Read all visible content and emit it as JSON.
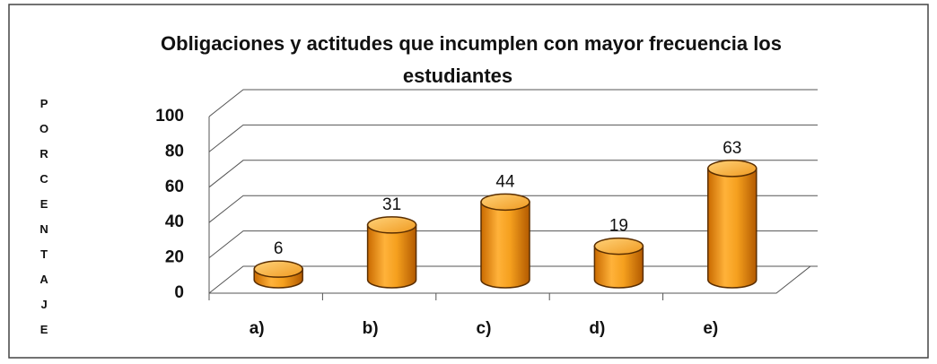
{
  "chart_data": {
    "type": "bar",
    "title": "Obligaciones y actitudes que incumplen con mayor frecuencia los",
    "title_line2": "estudiantes",
    "y_label": "PORCENTAJE",
    "categories": [
      "a)",
      "b)",
      "c)",
      "d)",
      "e)"
    ],
    "values": [
      6,
      31,
      44,
      19,
      63
    ],
    "color": "#f5a01e",
    "ylim": [
      0,
      100
    ],
    "yticks": [
      0,
      20,
      40,
      60,
      80,
      100
    ],
    "grid": true
  }
}
